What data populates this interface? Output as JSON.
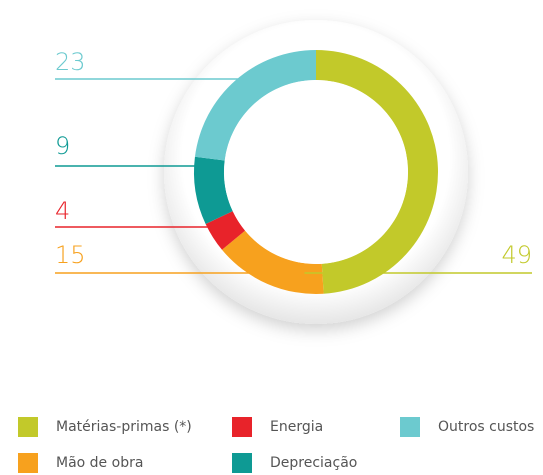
{
  "chart_data": {
    "type": "donut",
    "categories": [
      "Matérias-primas (*)",
      "Mão de obra",
      "Energia",
      "Depreciação",
      "Outros custos"
    ],
    "values": [
      49,
      15,
      4,
      9,
      23
    ],
    "colors": [
      "#c2c92a",
      "#f7a11e",
      "#e8232a",
      "#0e9a94",
      "#6ccacf"
    ]
  }
}
